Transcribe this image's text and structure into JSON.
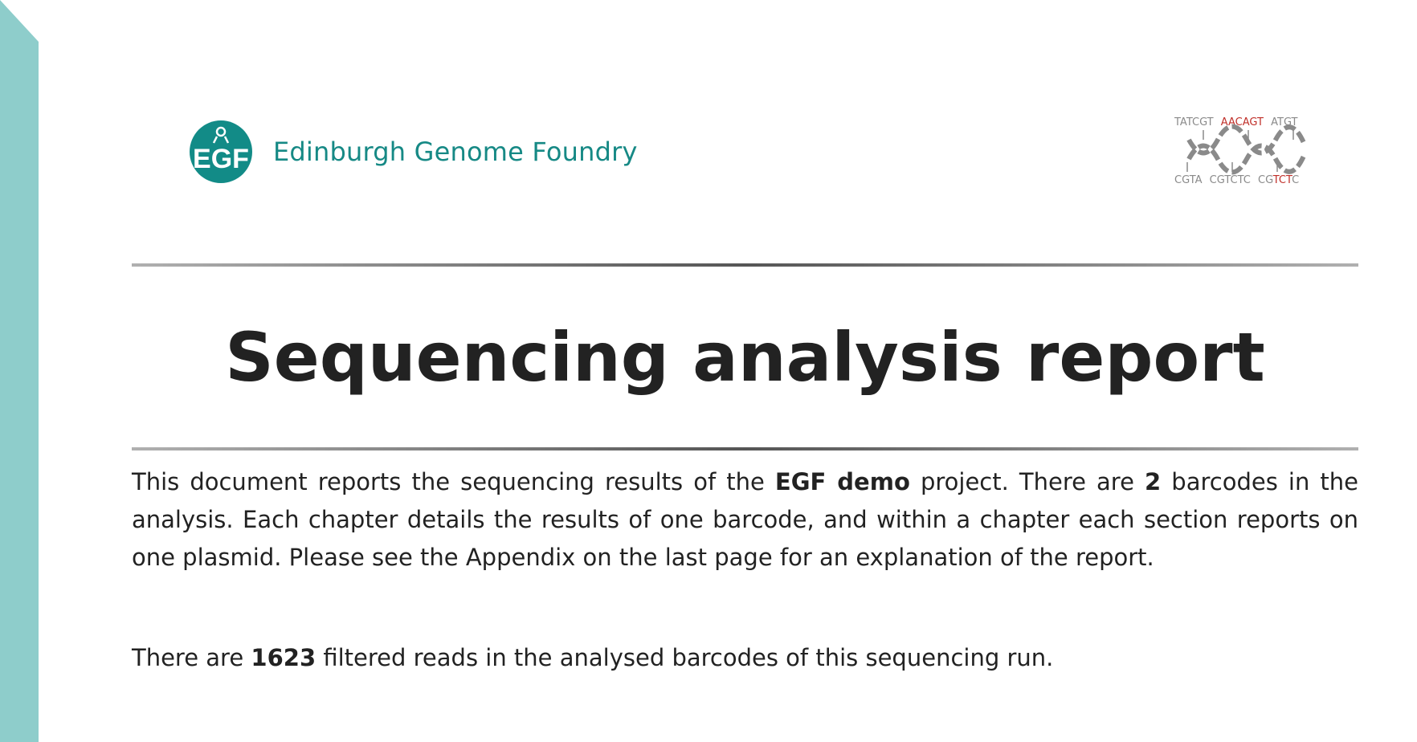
{
  "header": {
    "org_logo_letters": "EGF",
    "org_name": "Edinburgh Genome Foundry",
    "dna_logo": {
      "top_left": "TATCGT",
      "top_mid": "AACAGT",
      "top_right": "ATGT",
      "bottom_left": "CGTA",
      "bottom_mid": "CGTCTC",
      "bottom_right_a": "CG",
      "bottom_right_b": "TCT",
      "bottom_right_c": "C"
    }
  },
  "report": {
    "title": "Sequencing analysis report",
    "intro": {
      "p1": "This document reports the sequencing results of the ",
      "project": "EGF demo",
      "p2": " project. There are ",
      "barcodes": "2",
      "p3": " barcodes in the analysis. Each chapter details the results of one barcode, and within a chapter each section reports on one plasmid. Please see the Appendix on the last page for an explanation of the report."
    },
    "reads": {
      "p1": "There are ",
      "count": "1623",
      "p2": " filtered reads in the analysed barcodes of this sequencing run."
    }
  },
  "colors": {
    "accent_teal": "#128b87",
    "side_band": "#8ecdcb",
    "dna_red": "#c0302a",
    "dna_grey": "#8a8a8a"
  }
}
